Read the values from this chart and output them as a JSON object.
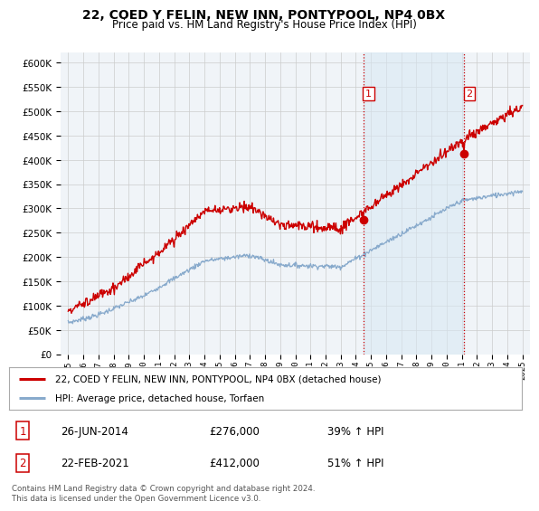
{
  "title": "22, COED Y FELIN, NEW INN, PONTYPOOL, NP4 0BX",
  "subtitle": "Price paid vs. HM Land Registry's House Price Index (HPI)",
  "ylim": [
    0,
    620000
  ],
  "yticks": [
    0,
    50000,
    100000,
    150000,
    200000,
    250000,
    300000,
    350000,
    400000,
    450000,
    500000,
    550000,
    600000
  ],
  "sale1_date": 2014.49,
  "sale1_price": 276000,
  "sale1_label": "1",
  "sale1_text": "26-JUN-2014",
  "sale1_amount": "£276,000",
  "sale1_pct": "39% ↑ HPI",
  "sale2_date": 2021.13,
  "sale2_price": 412000,
  "sale2_label": "2",
  "sale2_text": "22-FEB-2021",
  "sale2_amount": "£412,000",
  "sale2_pct": "51% ↑ HPI",
  "line_color_red": "#cc0000",
  "line_color_blue": "#88aacc",
  "vline_color": "#cc0000",
  "legend_line1": "22, COED Y FELIN, NEW INN, PONTYPOOL, NP4 0BX (detached house)",
  "legend_line2": "HPI: Average price, detached house, Torfaen",
  "footnote": "Contains HM Land Registry data © Crown copyright and database right 2024.\nThis data is licensed under the Open Government Licence v3.0.",
  "bg_color": "#ffffff",
  "plot_bg_color": "#f0f4f8",
  "grid_color": "#cccccc",
  "span_color": "#d8e8f4"
}
